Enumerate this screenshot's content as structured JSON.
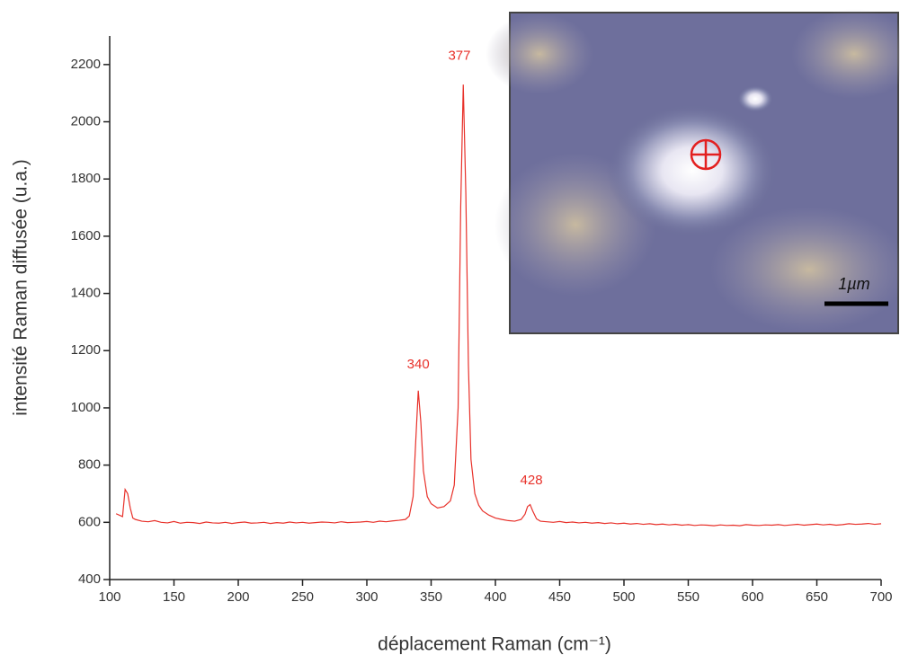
{
  "chart_data": {
    "type": "line",
    "x_label": "déplacement Raman (cm⁻¹)",
    "y_label": "intensité Raman diffusée (u.a.)",
    "color": "#e8312a",
    "x": [
      105,
      110,
      112,
      114,
      116,
      118,
      120,
      125,
      130,
      135,
      140,
      145,
      150,
      155,
      160,
      165,
      170,
      175,
      180,
      185,
      190,
      195,
      200,
      205,
      210,
      215,
      220,
      225,
      230,
      235,
      240,
      245,
      250,
      255,
      260,
      265,
      270,
      275,
      280,
      285,
      290,
      295,
      300,
      305,
      310,
      315,
      320,
      325,
      330,
      333,
      336,
      338,
      340,
      342,
      344,
      347,
      350,
      355,
      360,
      365,
      368,
      371,
      373,
      375,
      377,
      379,
      381,
      384,
      387,
      390,
      395,
      400,
      405,
      410,
      415,
      420,
      423,
      425,
      427,
      429,
      432,
      435,
      440,
      445,
      450,
      455,
      460,
      465,
      470,
      475,
      480,
      485,
      490,
      495,
      500,
      505,
      510,
      515,
      520,
      525,
      530,
      535,
      540,
      545,
      550,
      555,
      560,
      565,
      570,
      575,
      580,
      585,
      590,
      595,
      600,
      605,
      610,
      615,
      620,
      625,
      630,
      635,
      640,
      645,
      650,
      655,
      660,
      665,
      670,
      675,
      680,
      685,
      690,
      695,
      700
    ],
    "values": [
      630,
      620,
      715,
      700,
      650,
      615,
      610,
      604,
      602,
      606,
      600,
      598,
      603,
      597,
      600,
      599,
      596,
      601,
      598,
      597,
      600,
      596,
      599,
      601,
      597,
      598,
      600,
      596,
      599,
      597,
      601,
      598,
      600,
      597,
      599,
      601,
      600,
      598,
      602,
      599,
      600,
      601,
      603,
      600,
      604,
      602,
      605,
      607,
      610,
      622,
      690,
      880,
      1060,
      950,
      780,
      690,
      665,
      650,
      655,
      675,
      730,
      1000,
      1700,
      2130,
      1750,
      1150,
      820,
      700,
      660,
      640,
      625,
      615,
      610,
      606,
      604,
      610,
      628,
      655,
      662,
      640,
      612,
      604,
      602,
      600,
      603,
      599,
      601,
      598,
      600,
      597,
      599,
      596,
      598,
      595,
      597,
      594,
      596,
      593,
      595,
      592,
      594,
      591,
      593,
      590,
      592,
      589,
      591,
      590,
      588,
      591,
      589,
      590,
      588,
      592,
      590,
      589,
      591,
      590,
      592,
      589,
      591,
      593,
      590,
      592,
      594,
      591,
      593,
      590,
      592,
      595,
      593,
      594,
      596,
      593,
      595
    ],
    "xlim": [
      100,
      700
    ],
    "xticks": [
      100,
      150,
      200,
      250,
      300,
      350,
      400,
      450,
      500,
      550,
      600,
      650,
      700
    ],
    "ylim": [
      400,
      2300
    ],
    "yticks": [
      400,
      600,
      800,
      1000,
      1200,
      1400,
      1600,
      1800,
      2000,
      2200
    ],
    "annotations": [
      {
        "text": "340",
        "x": 340,
        "y": 1150
      },
      {
        "text": "377",
        "x": 372,
        "y": 2230
      },
      {
        "text": "428",
        "x": 428,
        "y": 745
      }
    ],
    "inset_scale_label": "1µm"
  }
}
